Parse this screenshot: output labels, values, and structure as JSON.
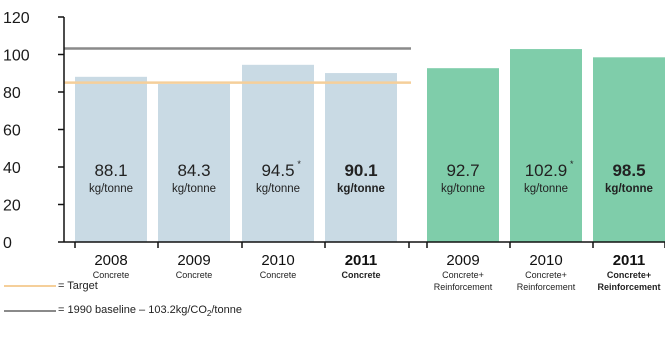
{
  "chart_data": {
    "type": "bar",
    "ylim": [
      0,
      120
    ],
    "yticks": [
      0,
      20,
      40,
      60,
      80,
      100,
      120
    ],
    "grid": false,
    "categories": [
      {
        "year": "2008",
        "sub": [
          "Concrete"
        ],
        "value": 88.1,
        "label": "88.1",
        "unit": "kg/tonne",
        "note": "",
        "bold": false,
        "color": "#c9dae4"
      },
      {
        "year": "2009",
        "sub": [
          "Concrete"
        ],
        "value": 84.3,
        "label": "84.3",
        "unit": "kg/tonne",
        "note": "",
        "bold": false,
        "color": "#c9dae4"
      },
      {
        "year": "2010",
        "sub": [
          "Concrete"
        ],
        "value": 94.5,
        "label": "94.5",
        "unit": "kg/tonne",
        "note": "*",
        "bold": false,
        "color": "#c9dae4"
      },
      {
        "year": "2011",
        "sub": [
          "Concrete"
        ],
        "value": 90.1,
        "label": "90.1",
        "unit": "kg/tonne",
        "note": "",
        "bold": true,
        "color": "#c9dae4"
      },
      {
        "year": "2009",
        "sub": [
          "Concrete+",
          "Reinforcement"
        ],
        "value": 92.7,
        "label": "92.7",
        "unit": "kg/tonne",
        "note": "",
        "bold": false,
        "color": "#7fcdaa"
      },
      {
        "year": "2010",
        "sub": [
          "Concrete+",
          "Reinforcement"
        ],
        "value": 102.9,
        "label": "102.9",
        "unit": "kg/tonne",
        "note": "*",
        "bold": false,
        "color": "#7fcdaa"
      },
      {
        "year": "2011",
        "sub": [
          "Concrete+",
          "Reinforcement"
        ],
        "value": 98.5,
        "label": "98.5",
        "unit": "kg/tonne",
        "note": "",
        "bold": true,
        "color": "#7fcdaa"
      }
    ],
    "reference_lines": [
      {
        "name": "Target",
        "value": 85,
        "color": "#f5cf9a",
        "range": "concrete"
      },
      {
        "name": "1990 baseline",
        "value": 103.2,
        "color": "#8a8a8a",
        "range": "concrete"
      }
    ],
    "legend": {
      "placement": "bottom-left",
      "items": [
        {
          "text": "= Target",
          "color": "#f5cf9a"
        },
        {
          "text_pre": "= 1990 baseline – 103.2kg/CO",
          "text_sub": "2",
          "text_post": "/tonne",
          "color": "#8a8a8a"
        }
      ]
    }
  }
}
